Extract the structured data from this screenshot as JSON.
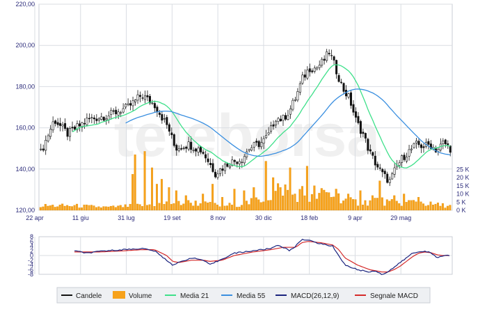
{
  "colors": {
    "candle": "#111111",
    "volume": "#f7a21b",
    "ma21": "#3ee08a",
    "ma55": "#3a8fe0",
    "macd": "#1a237e",
    "signal": "#d42a2a",
    "grid": "#d9dde2",
    "tick_text": "#2b2b7a"
  },
  "watermark": "teleborsa",
  "legend": {
    "candles": "Candele",
    "volume": "Volume",
    "ma21": "Media 21",
    "ma55": "Media 55",
    "macd": "MACD(26,12,9)",
    "signal": "Segnale MACD"
  },
  "chart_data": {
    "type": "line",
    "price_axis": {
      "ylim": [
        120,
        220
      ],
      "ticks": [
        "120,00",
        "140,00",
        "160,00",
        "180,00",
        "200,00",
        "220,00"
      ]
    },
    "volume_axis": {
      "ylim": [
        0,
        40
      ],
      "ticks": [
        "0 K",
        "5 K",
        "10 K",
        "15 K",
        "20 K",
        "25 K"
      ]
    },
    "macd_axis": {
      "ylim": [
        -8,
        8
      ],
      "ticks": [
        "8",
        "6",
        "4",
        "2",
        "0",
        "-2",
        "-4",
        "-6",
        "-8"
      ]
    },
    "x_ticks": [
      "22 apr",
      "11 giu",
      "31 lug",
      "19 set",
      "8 nov",
      "30 dic",
      "18 feb",
      "9 apr",
      "29 mag"
    ],
    "price_anchors": [
      [
        0,
        148
      ],
      [
        2,
        164
      ],
      [
        4,
        157
      ],
      [
        7,
        164
      ],
      [
        10,
        166
      ],
      [
        13,
        170
      ],
      [
        15,
        176
      ],
      [
        17,
        171
      ],
      [
        19,
        160
      ],
      [
        20,
        150
      ],
      [
        22,
        152
      ],
      [
        24,
        149
      ],
      [
        26,
        138
      ],
      [
        28,
        143
      ],
      [
        30,
        145
      ],
      [
        31,
        150
      ],
      [
        33,
        153
      ],
      [
        34,
        157
      ],
      [
        35,
        165
      ],
      [
        36,
        164
      ],
      [
        37,
        168
      ],
      [
        38,
        175
      ],
      [
        39,
        184
      ],
      [
        40,
        189
      ],
      [
        41,
        189
      ],
      [
        42,
        192
      ],
      [
        43,
        197
      ],
      [
        44,
        188
      ],
      [
        45,
        179
      ],
      [
        46,
        174
      ],
      [
        47,
        163
      ],
      [
        48,
        157
      ],
      [
        49,
        148
      ],
      [
        50,
        142
      ],
      [
        51,
        137
      ],
      [
        52,
        134
      ],
      [
        53,
        141
      ],
      [
        54,
        146
      ],
      [
        55,
        149
      ],
      [
        56,
        152
      ],
      [
        57,
        151
      ],
      [
        58,
        152
      ],
      [
        59,
        149
      ],
      [
        60,
        153
      ],
      [
        61,
        150
      ]
    ],
    "volume_anchors": [
      [
        0,
        3
      ],
      [
        5,
        3
      ],
      [
        10,
        2
      ],
      [
        14,
        3
      ],
      [
        17,
        4
      ],
      [
        20,
        5
      ],
      [
        23,
        5
      ],
      [
        27,
        3
      ],
      [
        31,
        5
      ],
      [
        34,
        9
      ],
      [
        36,
        16
      ],
      [
        37,
        12
      ],
      [
        38,
        10
      ],
      [
        39,
        12
      ],
      [
        40,
        8
      ],
      [
        42,
        11
      ],
      [
        44,
        10
      ],
      [
        46,
        6
      ],
      [
        48,
        5
      ],
      [
        50,
        7
      ],
      [
        52,
        5
      ],
      [
        54,
        5
      ],
      [
        56,
        6
      ],
      [
        58,
        4
      ],
      [
        61,
        3
      ]
    ],
    "volume_spikes": [
      [
        38,
        22
      ],
      [
        39,
        34
      ],
      [
        43,
        36
      ],
      [
        46,
        26
      ],
      [
        48,
        16
      ],
      [
        50,
        19
      ],
      [
        53,
        14
      ],
      [
        56,
        12
      ],
      [
        60,
        9
      ],
      [
        67,
        10
      ],
      [
        71,
        16
      ],
      [
        75,
        8
      ],
      [
        80,
        13
      ],
      [
        84,
        12
      ],
      [
        88,
        14
      ],
      [
        93,
        30
      ],
      [
        96,
        20
      ],
      [
        99,
        14
      ],
      [
        103,
        26
      ],
      [
        110,
        27
      ],
      [
        113,
        15
      ],
      [
        118,
        11
      ],
      [
        122,
        13
      ],
      [
        127,
        10
      ],
      [
        132,
        12
      ],
      [
        137,
        9
      ],
      [
        140,
        18
      ],
      [
        146,
        9
      ],
      [
        150,
        10
      ],
      [
        156,
        8
      ]
    ],
    "macd_anchors": [
      [
        0,
        2
      ],
      [
        2,
        1
      ],
      [
        5,
        2
      ],
      [
        8,
        2.5
      ],
      [
        11,
        3
      ],
      [
        13,
        2
      ],
      [
        15,
        -2
      ],
      [
        16,
        -4
      ],
      [
        17,
        -3
      ],
      [
        19,
        -1
      ],
      [
        21,
        -2
      ],
      [
        22,
        -4
      ],
      [
        24,
        -1.5
      ],
      [
        26,
        1
      ],
      [
        29,
        2
      ],
      [
        32,
        3
      ],
      [
        33,
        4.5
      ],
      [
        34,
        3.5
      ],
      [
        35,
        2
      ],
      [
        36,
        4
      ],
      [
        37,
        7
      ],
      [
        38,
        6.5
      ],
      [
        40,
        5
      ],
      [
        42,
        4
      ],
      [
        43,
        0
      ],
      [
        44,
        -4
      ],
      [
        46,
        -6
      ],
      [
        48,
        -7
      ],
      [
        49,
        -6.5
      ],
      [
        50,
        -8
      ],
      [
        51,
        -7
      ],
      [
        52,
        -5
      ],
      [
        53,
        -3
      ],
      [
        54,
        -1
      ],
      [
        55,
        1
      ],
      [
        56,
        1.5
      ],
      [
        57,
        2
      ],
      [
        58,
        1
      ],
      [
        59,
        -1
      ],
      [
        60,
        0
      ],
      [
        61,
        0
      ]
    ],
    "signal_anchors": [
      [
        0,
        1.5
      ],
      [
        4,
        1.5
      ],
      [
        8,
        2
      ],
      [
        11,
        2.5
      ],
      [
        13,
        2.5
      ],
      [
        15,
        0
      ],
      [
        16,
        -2.5
      ],
      [
        17,
        -3
      ],
      [
        19,
        -2
      ],
      [
        21,
        -2
      ],
      [
        22,
        -2.5
      ],
      [
        24,
        -2
      ],
      [
        26,
        0
      ],
      [
        29,
        1.5
      ],
      [
        32,
        2.5
      ],
      [
        34,
        3.5
      ],
      [
        36,
        3.5
      ],
      [
        37,
        5.5
      ],
      [
        38,
        6
      ],
      [
        40,
        5.5
      ],
      [
        42,
        4.5
      ],
      [
        43,
        2.5
      ],
      [
        44,
        -1
      ],
      [
        46,
        -4
      ],
      [
        48,
        -6
      ],
      [
        49,
        -6.5
      ],
      [
        50,
        -7
      ],
      [
        51,
        -7
      ],
      [
        52,
        -6
      ],
      [
        53,
        -4.5
      ],
      [
        54,
        -2.5
      ],
      [
        55,
        -0.5
      ],
      [
        56,
        1
      ],
      [
        57,
        1.5
      ],
      [
        58,
        1.2
      ],
      [
        59,
        0.3
      ],
      [
        60,
        0
      ],
      [
        61,
        0
      ]
    ]
  }
}
